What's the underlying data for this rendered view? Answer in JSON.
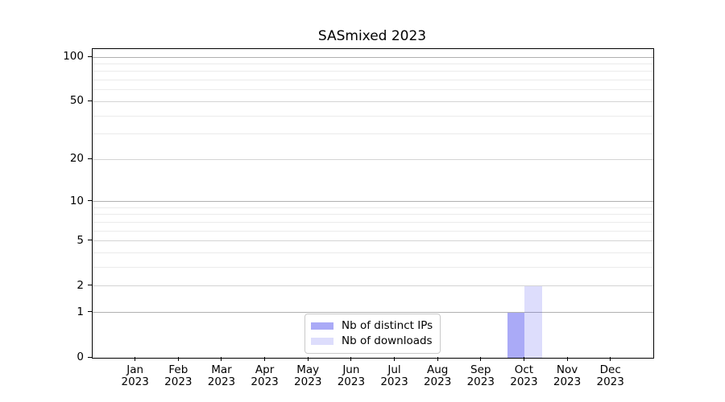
{
  "chart_data": {
    "type": "bar",
    "title": "SASmixed 2023",
    "x_tick_months": [
      "Jan",
      "Feb",
      "Mar",
      "Apr",
      "May",
      "Jun",
      "Jul",
      "Aug",
      "Sep",
      "Oct",
      "Nov",
      "Dec"
    ],
    "x_tick_year": "2023",
    "categories": [
      "Jan 2023",
      "Feb 2023",
      "Mar 2023",
      "Apr 2023",
      "May 2023",
      "Jun 2023",
      "Jul 2023",
      "Aug 2023",
      "Sep 2023",
      "Oct 2023",
      "Nov 2023",
      "Dec 2023"
    ],
    "series": [
      {
        "name": "Nb of distinct IPs",
        "color": "rgba(85,85,240,0.5)",
        "values": [
          0,
          0,
          0,
          0,
          0,
          0,
          0,
          0,
          0,
          1,
          0,
          0
        ]
      },
      {
        "name": "Nb of downloads",
        "color": "rgba(85,85,240,0.2)",
        "values": [
          0,
          0,
          0,
          0,
          0,
          0,
          0,
          0,
          0,
          2,
          0,
          0
        ]
      }
    ],
    "y_axis": {
      "scale": "log1p",
      "ticks": [
        0,
        1,
        2,
        5,
        10,
        20,
        50,
        100
      ],
      "range": [
        0,
        113
      ],
      "gridlines": {
        "major": [
          1,
          10,
          100
        ],
        "mid": [
          2,
          5,
          20,
          50
        ],
        "minor": [
          3,
          4,
          6,
          7,
          8,
          9,
          30,
          40,
          60,
          70,
          80,
          90
        ]
      }
    },
    "legend": {
      "position": "lower center",
      "entries": [
        "Nb of distinct IPs",
        "Nb of downloads"
      ]
    },
    "grid": true
  },
  "colors": {
    "bar_distinct_ips": "rgba(85,85,240,0.5)",
    "bar_downloads": "rgba(85,85,240,0.2)",
    "grid_major": "#b0b0b0",
    "grid_mid": "#d4d4d4",
    "grid_minor": "#ebebeb",
    "spine": "#000000",
    "text": "#000000",
    "legend_border": "#c9c9c9"
  }
}
